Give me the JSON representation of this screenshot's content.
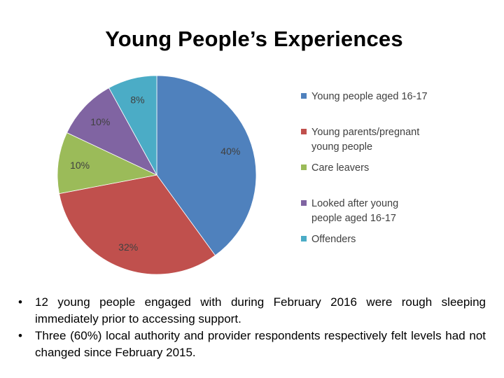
{
  "title": "Young People’s Experiences",
  "chart_data": {
    "type": "pie",
    "title": "",
    "slices": [
      {
        "label": "Young people aged 16-17",
        "value": 40,
        "display": "40%",
        "color": "#4F81BD"
      },
      {
        "label": "Young parents/pregnant young people",
        "value": 32,
        "display": "32%",
        "color": "#C0504D"
      },
      {
        "label": "Care leavers",
        "value": 10,
        "display": "10%",
        "color": "#9BBB59"
      },
      {
        "label": "Looked after young people aged 16-17",
        "value": 10,
        "display": "10%",
        "color": "#8064A2"
      },
      {
        "label": "Offenders",
        "value": 8,
        "display": "8%",
        "color": "#4BACC6"
      }
    ],
    "legend_position": "right",
    "legend_lines": [
      [
        "Young people aged 16-17"
      ],
      [
        "Young parents/pregnant",
        "young people"
      ],
      [
        "Care leavers"
      ],
      [
        "Looked after young",
        "people aged 16-17"
      ],
      [
        "Offenders"
      ]
    ]
  },
  "bullets": [
    {
      "glyph": "•",
      "text": "12 young people engaged with during February 2016 were rough sleeping immediately prior to accessing support."
    },
    {
      "glyph": "•",
      "text": "Three (60%) local authority and provider respondents respectively felt levels had not changed since February 2015."
    }
  ]
}
